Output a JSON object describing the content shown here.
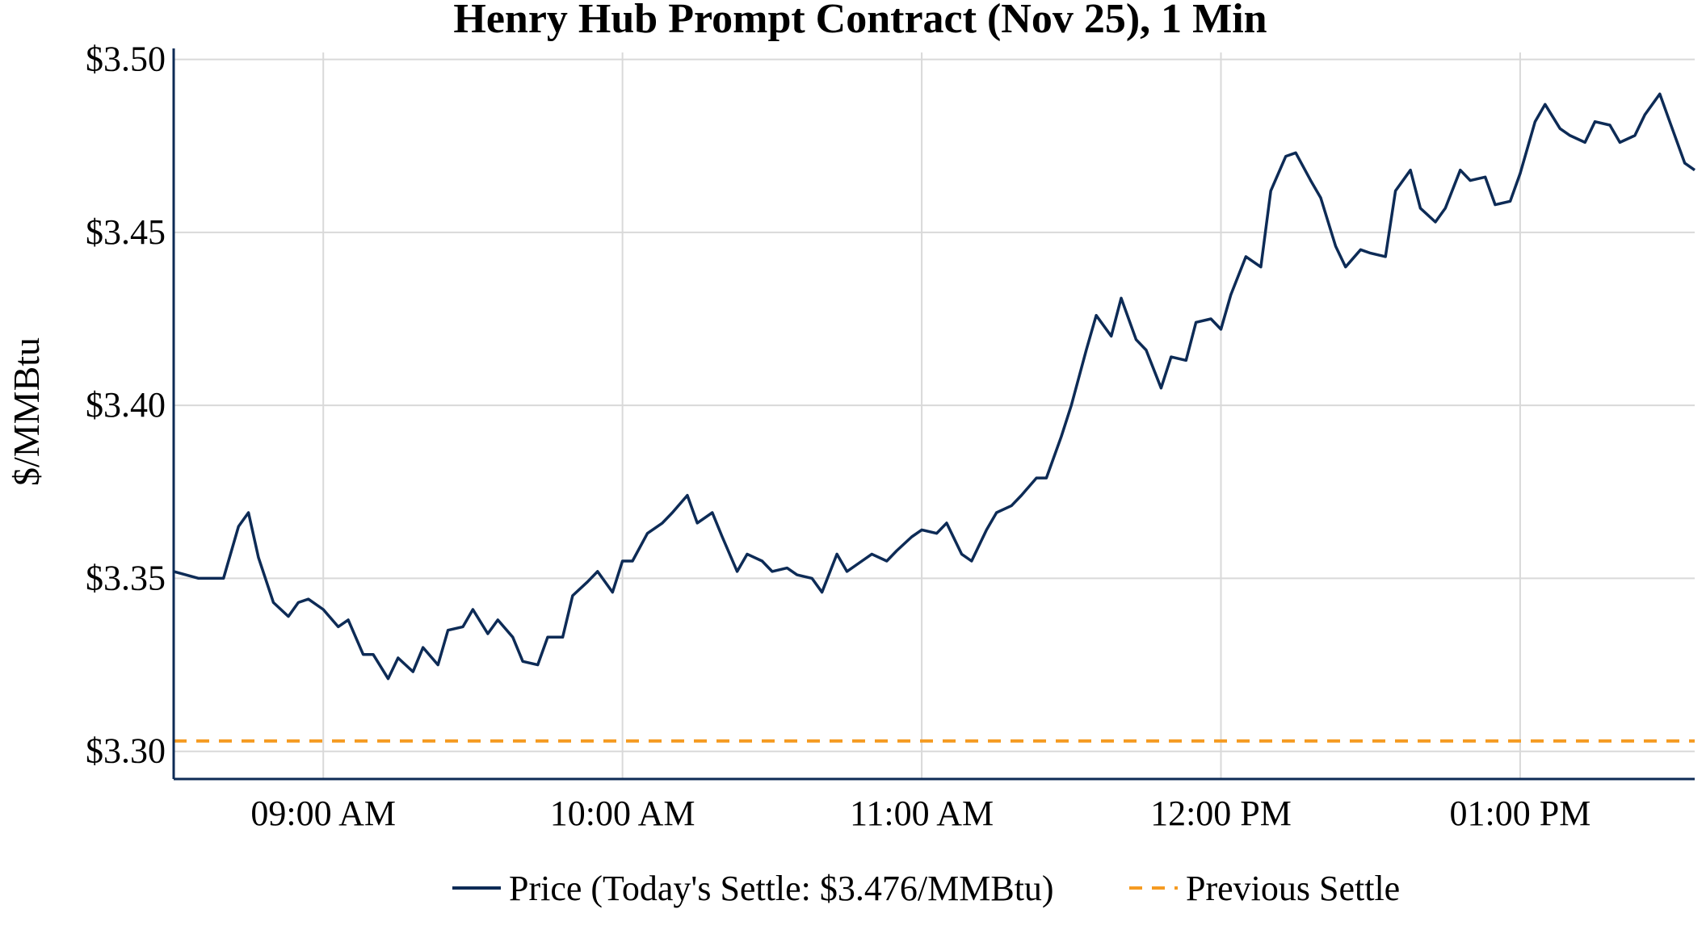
{
  "chart_data": {
    "type": "line",
    "title": "Henry Hub Prompt Contract (Nov 25), 1 Min",
    "xlabel": "",
    "ylabel": "$/MMBtu",
    "x_range": [
      "08:30",
      "13:35"
    ],
    "ylim": [
      3.292,
      3.502
    ],
    "yticks": [
      3.3,
      3.35,
      3.4,
      3.45,
      3.5
    ],
    "ytick_labels": [
      "$3.30",
      "$3.35",
      "$3.40",
      "$3.45",
      "$3.50"
    ],
    "xticks": [
      "09:00",
      "10:00",
      "11:00",
      "12:00",
      "13:00"
    ],
    "xtick_labels": [
      "09:00 AM",
      "10:00 AM",
      "11:00 AM",
      "12:00 PM",
      "01:00 PM"
    ],
    "grid": true,
    "legend_position": "bottom-center",
    "colors": {
      "price": "#0d2b56",
      "previous_settle": "#f59b22",
      "axis": "#0d2b56",
      "grid": "#d9d9d9"
    },
    "series": [
      {
        "name": "Price (Today's Settle: $3.476/MMBtu)",
        "style": "solid",
        "x": [
          "08:30",
          "08:35",
          "08:40",
          "08:43",
          "08:45",
          "08:47",
          "08:50",
          "08:53",
          "08:55",
          "08:57",
          "09:00",
          "09:03",
          "09:05",
          "09:08",
          "09:10",
          "09:13",
          "09:15",
          "09:18",
          "09:20",
          "09:23",
          "09:25",
          "09:28",
          "09:30",
          "09:33",
          "09:35",
          "09:38",
          "09:40",
          "09:43",
          "09:45",
          "09:48",
          "09:50",
          "09:53",
          "09:55",
          "09:58",
          "10:00",
          "10:02",
          "10:05",
          "10:08",
          "10:10",
          "10:13",
          "10:15",
          "10:18",
          "10:20",
          "10:23",
          "10:25",
          "10:28",
          "10:30",
          "10:33",
          "10:35",
          "10:38",
          "10:40",
          "10:43",
          "10:45",
          "10:48",
          "10:50",
          "10:53",
          "10:55",
          "10:58",
          "11:00",
          "11:03",
          "11:05",
          "11:08",
          "11:10",
          "11:13",
          "11:15",
          "11:18",
          "11:20",
          "11:23",
          "11:25",
          "11:28",
          "11:30",
          "11:33",
          "11:35",
          "11:38",
          "11:40",
          "11:43",
          "11:45",
          "11:48",
          "11:50",
          "11:53",
          "11:55",
          "11:58",
          "12:00",
          "12:02",
          "12:05",
          "12:08",
          "12:10",
          "12:13",
          "12:15",
          "12:18",
          "12:20",
          "12:23",
          "12:25",
          "12:28",
          "12:30",
          "12:33",
          "12:35",
          "12:38",
          "12:40",
          "12:43",
          "12:45",
          "12:48",
          "12:50",
          "12:53",
          "12:55",
          "12:58",
          "13:00",
          "13:03",
          "13:05",
          "13:08",
          "13:10",
          "13:13",
          "13:15",
          "13:18",
          "13:20",
          "13:23",
          "13:25",
          "13:28",
          "13:30",
          "13:33",
          "13:35"
        ],
        "y": [
          3.352,
          3.35,
          3.35,
          3.365,
          3.369,
          3.356,
          3.343,
          3.339,
          3.343,
          3.344,
          3.341,
          3.336,
          3.338,
          3.328,
          3.328,
          3.321,
          3.327,
          3.323,
          3.33,
          3.325,
          3.335,
          3.336,
          3.341,
          3.334,
          3.338,
          3.333,
          3.326,
          3.325,
          3.333,
          3.333,
          3.345,
          3.349,
          3.352,
          3.346,
          3.355,
          3.355,
          3.363,
          3.366,
          3.369,
          3.374,
          3.366,
          3.369,
          3.362,
          3.352,
          3.357,
          3.355,
          3.352,
          3.353,
          3.351,
          3.35,
          3.346,
          3.357,
          3.352,
          3.355,
          3.357,
          3.355,
          3.358,
          3.362,
          3.364,
          3.363,
          3.366,
          3.357,
          3.355,
          3.364,
          3.369,
          3.371,
          3.374,
          3.379,
          3.379,
          3.391,
          3.4,
          3.416,
          3.426,
          3.42,
          3.431,
          3.419,
          3.416,
          3.405,
          3.414,
          3.413,
          3.424,
          3.425,
          3.422,
          3.432,
          3.443,
          3.44,
          3.462,
          3.472,
          3.473,
          3.465,
          3.46,
          3.446,
          3.44,
          3.445,
          3.444,
          3.443,
          3.462,
          3.468,
          3.457,
          3.453,
          3.457,
          3.468,
          3.465,
          3.466,
          3.458,
          3.459,
          3.467,
          3.482,
          3.487,
          3.48,
          3.478,
          3.476,
          3.482,
          3.481,
          3.476,
          3.478,
          3.484,
          3.49,
          3.482,
          3.47,
          3.468
        ]
      },
      {
        "name": "Previous Settle",
        "style": "dashed",
        "x": [
          "08:30",
          "13:35"
        ],
        "y": [
          3.303,
          3.303
        ]
      }
    ]
  }
}
